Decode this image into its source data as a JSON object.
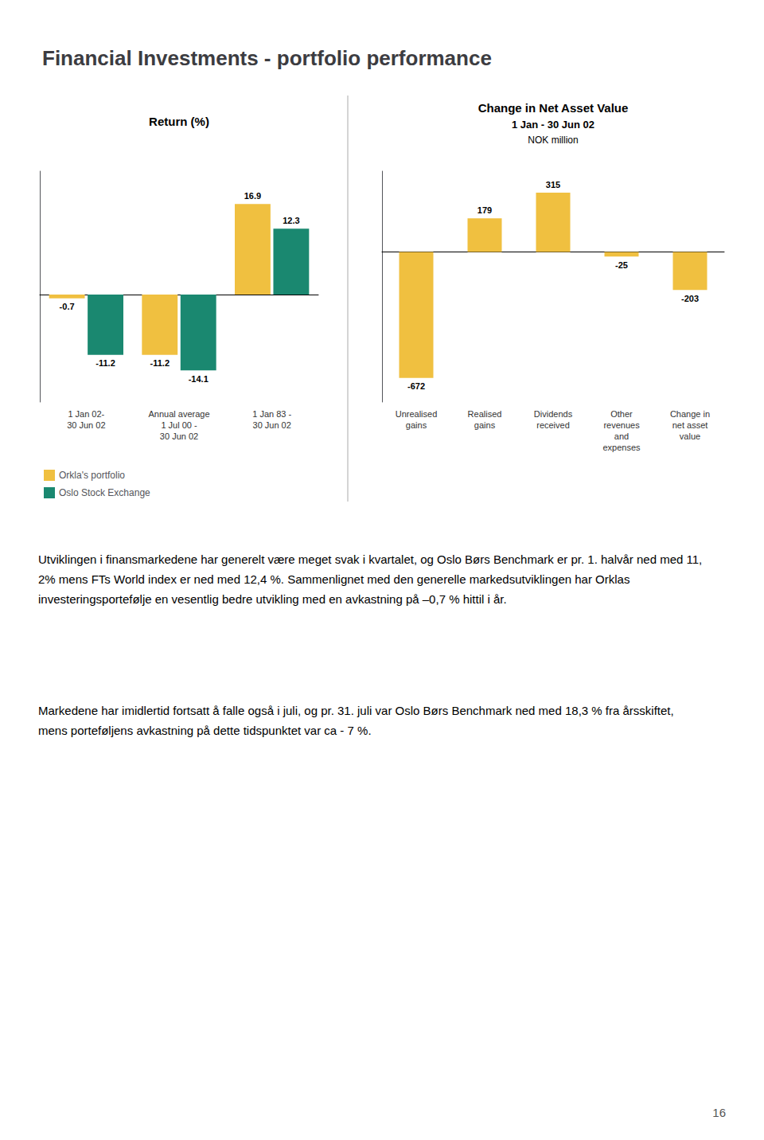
{
  "title": "Financial Investments - portfolio performance",
  "chart_data": [
    {
      "type": "bar",
      "title": "Return (%)",
      "categories": [
        "1 Jan 02-\n30 Jun 02",
        "Annual average\n1 Jul 00 -\n30 Jun 02",
        "1 Jan 83 -\n30 Jun 02"
      ],
      "series": [
        {
          "name": "Orkla's portfolio",
          "color": "#F0C040",
          "values": [
            -0.7,
            -11.2,
            16.9
          ]
        },
        {
          "name": "Oslo Stock Exchange",
          "color": "#1A8870",
          "values": [
            -11.2,
            -14.1,
            12.3
          ]
        }
      ],
      "ylim": [
        -20,
        23
      ],
      "data_labels": true,
      "tick_labels": "x",
      "grid": false,
      "legend": "lower left"
    },
    {
      "type": "bar",
      "title": "Change in Net Asset Value",
      "subtitle": "1 Jan - 30 Jun 02",
      "ylabel": "NOK million",
      "categories": [
        "Unrealised\ngains",
        "Realised\ngains",
        "Dividends\nreceived",
        "Other\nrevenues\nand\nexpenses",
        "Change in\nnet asset\nvalue"
      ],
      "values": [
        -672,
        179,
        315,
        -25,
        -203
      ],
      "color": "#F0C040",
      "ylim": [
        -800,
        430
      ],
      "data_labels": true,
      "tick_labels": "x",
      "grid": false
    }
  ],
  "annotations": [
    "Utviklingen i finansmarkedene har generelt være meget svak i kvartalet, og Oslo Børs Benchmark er pr. 1. halvår ned med 11,2% mens FTs World index er ned med 12,4 %. Sammenlignet med den generelle markedsutviklingen har Orklas investeringsportefølje en vesentlig bedre utvikling med en avkastning på –0,7 % hittil i år.",
    "Markedene har imidlertid fortsatt å falle også i juli, og pr. 31. juli var Oslo Børs Benchmark ned med 18,3 % fra årsskiftet, mens porteføljens avkastning på dette tidspunktet var ca - 7 %.",
    "16"
  ]
}
